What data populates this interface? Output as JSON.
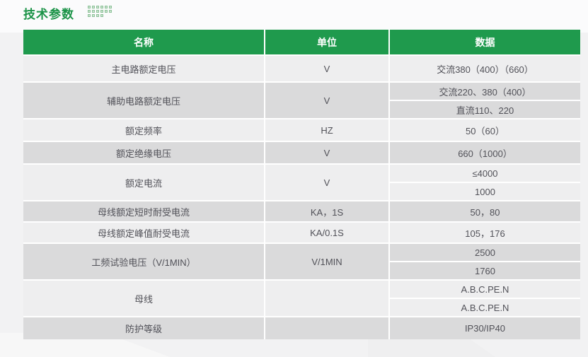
{
  "page": {
    "title": "技术参数"
  },
  "table": {
    "headers": [
      "名称",
      "单位",
      "数据"
    ],
    "rows": [
      {
        "name": "主电路额定电压",
        "unit": "V",
        "data": [
          "交流380（400）（660）"
        ]
      },
      {
        "name": "辅助电路额定电压",
        "unit": "V",
        "data": [
          "交流220、380（400）",
          "直流110、220"
        ]
      },
      {
        "name": "额定频率",
        "unit": "HZ",
        "data": [
          "50（60）"
        ]
      },
      {
        "name": "额定绝缘电压",
        "unit": "V",
        "data": [
          "660（1000）"
        ]
      },
      {
        "name": "额定电流",
        "unit": "V",
        "data": [
          "≤4000",
          "1000"
        ]
      },
      {
        "name": "母线额定短时耐受电流",
        "unit": "KA，1S",
        "data": [
          "50，80"
        ]
      },
      {
        "name": "母线额定峰值耐受电流",
        "unit": "KA/0.1S",
        "data": [
          "105，176"
        ]
      },
      {
        "name": "工频试验电压（V/1MIN）",
        "unit": "V/1MIN",
        "data": [
          "2500",
          "1760"
        ]
      },
      {
        "name": "母线",
        "unit": "",
        "data": [
          "A.B.C.PE.N",
          "A.B.C.PE.N"
        ]
      },
      {
        "name": "防护等级",
        "unit": "",
        "data": [
          "IP30/IP40"
        ]
      }
    ]
  },
  "colors": {
    "header_green": "#1f9a4d",
    "title_green": "#1b9347",
    "row_light": "#eeeeef",
    "row_dark": "#dadadb",
    "header_text": "#ffffff",
    "body_text": "#515158"
  }
}
